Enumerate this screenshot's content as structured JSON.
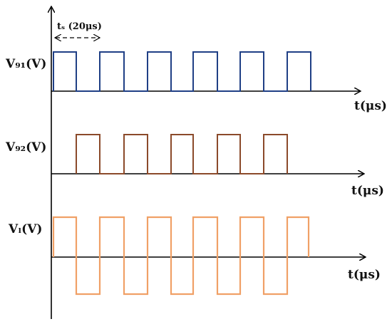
{
  "colors": {
    "axis": "#000000",
    "vg1": "#1f3f85",
    "vg2": "#8b4a2a",
    "vl": "#f0a066"
  },
  "period_label": "tₛ (20μs)",
  "plots": [
    {
      "y_label": "V₉₁(V)",
      "x_label": "t(μs)"
    },
    {
      "y_label": "V₉₂(V)",
      "x_label": "t(μs)"
    },
    {
      "y_label": "Vₗ(V)",
      "x_label": "t(μs)"
    }
  ]
}
